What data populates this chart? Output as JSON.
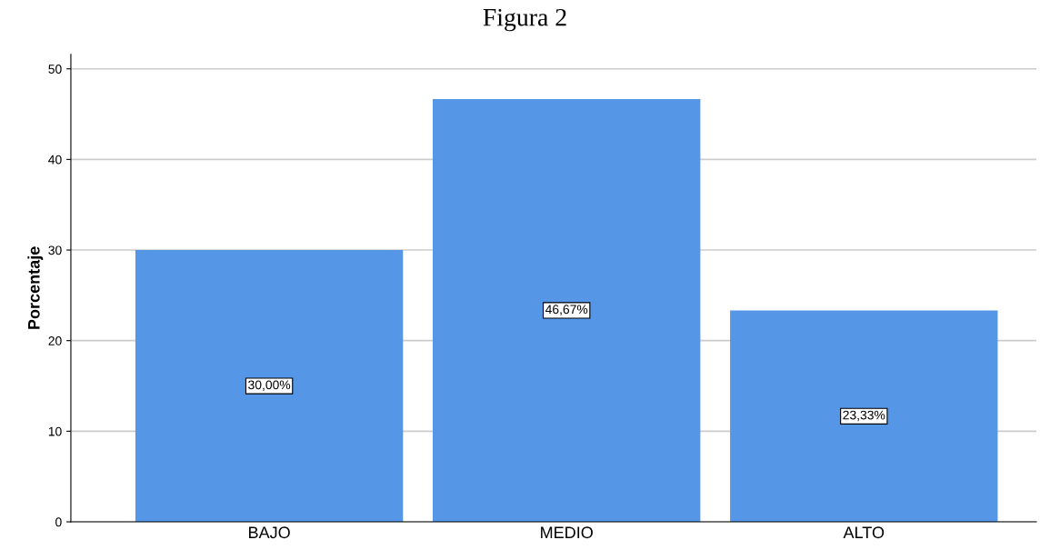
{
  "chart_data": {
    "type": "bar",
    "title": "Figura 2",
    "ylabel": "Porcentaje",
    "categories": [
      "BAJO",
      "MEDIO",
      "ALTO"
    ],
    "values": [
      30,
      46.67,
      23.33
    ],
    "value_labels": [
      "30,00%",
      "46,67%",
      "23,33%"
    ],
    "color": "#5596e6",
    "ylim": [
      0,
      51.6
    ],
    "yticks": [
      0,
      10,
      20,
      30,
      40,
      50
    ],
    "grid": "y",
    "legend": false
  }
}
